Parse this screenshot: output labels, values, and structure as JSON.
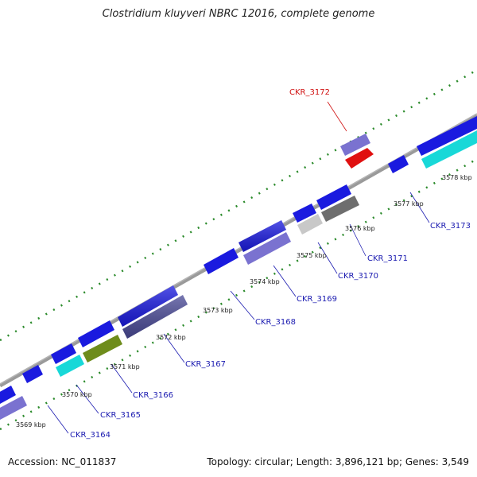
{
  "title": "Clostridium kluyveri NBRC 12016, complete genome",
  "accession": "Accession: NC_011837",
  "summary": "Topology: circular; Length: 3,896,121 bp; Genes: 3,549",
  "ticks": [
    "3569 kbp",
    "3570 kbp",
    "3571 kbp",
    "3572 kbp",
    "3573 kbp",
    "3574 kbp",
    "3575 kbp",
    "3576 kbp",
    "3577 kbp",
    "3578 kbp"
  ],
  "genes": {
    "g3164": "CKR_3164",
    "g3165": "CKR_3165",
    "g3166": "CKR_3166",
    "g3167": "CKR_3167",
    "g3168": "CKR_3168",
    "g3169": "CKR_3169",
    "g3170": "CKR_3170",
    "g3171": "CKR_3171",
    "g3172": "CKR_3172",
    "g3173": "CKR_3173"
  },
  "colors": {
    "blue": "#1a1adf",
    "cyan": "#18d8d8",
    "olive": "#6e8c1c",
    "slate": "#4a4a96",
    "lavender": "#7a72d0",
    "gray": "#6e6e6e",
    "lightgray": "#c8c8c8",
    "red": "#e01010",
    "backbone": "#8a8a8a",
    "green": "#2a8a2a",
    "label_blue": "#1a1ab0",
    "label_red": "#d01010"
  }
}
